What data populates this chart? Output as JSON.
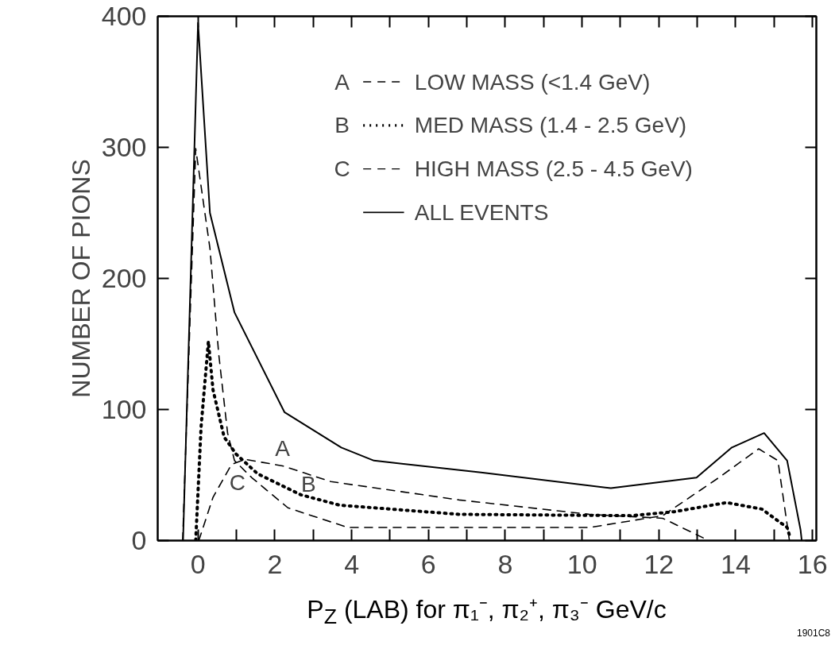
{
  "chart_data": {
    "type": "line",
    "xlabel": "P$_{Z}$ (LAB) for π₁⁻, π₂⁺, π₃⁻ GeV/c",
    "ylabel": "NUMBER OF PIONS",
    "xlim": [
      -1.05,
      16.1
    ],
    "ylim": [
      0,
      400
    ],
    "xticks": [
      0,
      {
        "value": 1,
        "label": null
      },
      2,
      {
        "value": 3,
        "label": null
      },
      4,
      {
        "value": 5,
        "label": null
      },
      6,
      {
        "value": 7,
        "label": null
      },
      8,
      {
        "value": 9,
        "label": null
      },
      10,
      {
        "value": 11,
        "label": null
      },
      12,
      {
        "value": 13,
        "label": null
      },
      14,
      {
        "value": 15,
        "label": null
      },
      16
    ],
    "yticks": [
      0,
      100,
      200,
      300,
      400
    ],
    "grid": false,
    "legend": "top right",
    "marker": "none",
    "series": [
      {
        "name": "LOW MASS (<1.4 GeV)",
        "color": "#000000",
        "line_style": "dashed",
        "x": [
          0.02,
          0.39,
          0.87,
          1.22,
          2.2,
          3.46,
          6.8,
          10.2,
          12.1,
          13.3
        ],
        "values": [
          0,
          33,
          58,
          62,
          57,
          45,
          31,
          20,
          17,
          0
        ]
      },
      {
        "name": "MED MASS (1.4 - 2.5 GeV)",
        "color": "#000000",
        "line_style": "dotted",
        "x": [
          -0.06,
          0.08,
          0.27,
          0.39,
          0.68,
          0.99,
          1.55,
          2.67,
          3.69,
          6.8,
          11.3,
          12.4,
          13.77,
          14.68,
          15.34,
          15.4
        ],
        "values": [
          0,
          87,
          152,
          115,
          79,
          66,
          51,
          35,
          27,
          20,
          19,
          22,
          29,
          24,
          10,
          4
        ]
      },
      {
        "name": "HIGH MASS (2.5 - 4.5 GeV)",
        "color": "#000000",
        "line_style": "dashed",
        "x": [
          -0.4,
          -0.06,
          0.31,
          0.54,
          0.77,
          0.95,
          1.4,
          2.34,
          3.9,
          10.2,
          12.1,
          13.56,
          14.6,
          15.1,
          15.36,
          15.4
        ],
        "values": [
          0,
          299,
          223,
          142,
          82,
          61,
          48,
          25,
          10,
          10,
          19,
          48,
          70,
          61,
          8,
          0
        ]
      },
      {
        "name": "ALL EVENTS",
        "color": "#000000",
        "line_style": "solid",
        "x": [
          -0.39,
          0,
          0.31,
          0.95,
          2.25,
          3.73,
          4.58,
          7.37,
          10.75,
          12.98,
          13.9,
          14.74,
          15.34,
          15.69,
          15.72
        ],
        "values": [
          0,
          395,
          250,
          174,
          98,
          71,
          61,
          52,
          40,
          48,
          71,
          82,
          61,
          8,
          0
        ]
      }
    ],
    "annotations": [
      {
        "text": "A",
        "x": 2.2,
        "y": 57
      },
      {
        "text": "B",
        "x": 2.67,
        "y": 35
      },
      {
        "text": "C",
        "x": 1.4,
        "y": 48
      },
      "A",
      "B",
      "C",
      "1901C8"
    ]
  }
}
